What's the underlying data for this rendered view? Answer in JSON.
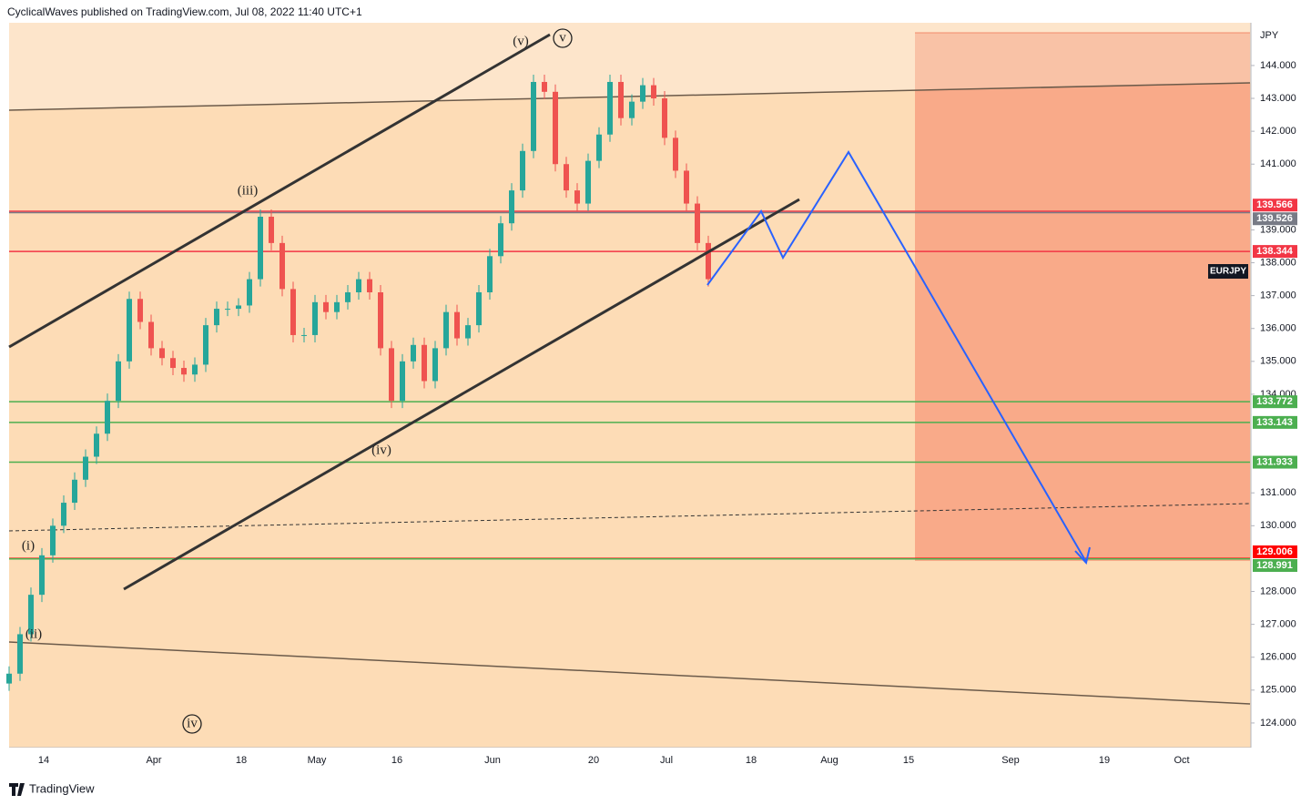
{
  "header": {
    "text": "CyclicalWaves published on TradingView.com, Jul 08, 2022 11:40 UTC+1"
  },
  "footer": {
    "brand": "TradingView"
  },
  "chart_data": {
    "type": "candlestick",
    "symbol": "EURJPY",
    "unit": "JPY",
    "up_color": "#26a69a",
    "down_color": "#ef5350",
    "closes": [
      125.5,
      126.7,
      127.9,
      129.1,
      130.0,
      130.7,
      131.4,
      132.1,
      132.8,
      133.8,
      135.0,
      136.9,
      136.2,
      135.4,
      135.1,
      134.8,
      134.6,
      134.9,
      136.1,
      136.6,
      136.6,
      136.7,
      137.5,
      139.4,
      138.6,
      137.2,
      135.8,
      135.8,
      136.8,
      136.5,
      136.8,
      137.1,
      137.5,
      137.1,
      135.4,
      133.8,
      135.0,
      135.5,
      134.4,
      135.4,
      136.5,
      135.7,
      136.1,
      137.1,
      138.2,
      139.2,
      140.2,
      141.4,
      143.5,
      143.2,
      141.0,
      140.2,
      139.8,
      141.1,
      141.9,
      143.5,
      142.4,
      142.9,
      143.4,
      143.0,
      141.8,
      140.8,
      139.8,
      138.6,
      137.5
    ],
    "ylim": [
      123.25,
      145.3
    ],
    "yticks": [
      {
        "value": 124,
        "label": "124.000"
      },
      {
        "value": 125,
        "label": "125.000"
      },
      {
        "value": 126,
        "label": "126.000"
      },
      {
        "value": 127,
        "label": "127.000"
      },
      {
        "value": 128,
        "label": "128.000"
      },
      {
        "value": 130,
        "label": "130.000"
      },
      {
        "value": 131,
        "label": "131.000"
      },
      {
        "value": 134,
        "label": "134.000"
      },
      {
        "value": 135,
        "label": "135.000"
      },
      {
        "value": 136,
        "label": "136.000"
      },
      {
        "value": 137,
        "label": "137.000"
      },
      {
        "value": 138,
        "label": "138.000"
      },
      {
        "value": 139,
        "label": "139.000"
      },
      {
        "value": 141,
        "label": "141.000"
      },
      {
        "value": 142,
        "label": "142.000"
      },
      {
        "value": 143,
        "label": "143.000"
      },
      {
        "value": 144,
        "label": "144.000"
      }
    ],
    "xticks": [
      "14",
      "Apr",
      "18",
      "May",
      "16",
      "Jun",
      "20",
      "Jul",
      "18",
      "Aug",
      "15",
      "Sep",
      "19",
      "Oct"
    ],
    "levels": [
      {
        "value": 139.566,
        "color": "#f23645"
      },
      {
        "value": 139.526,
        "color": "#787b86"
      },
      {
        "value": 138.344,
        "color": "#f23645"
      },
      {
        "value": 133.772,
        "color": "#4caf50"
      },
      {
        "value": 133.143,
        "color": "#4caf50"
      },
      {
        "value": 131.933,
        "color": "#4caf50"
      },
      {
        "value": 129.006,
        "color": "#ff0000"
      },
      {
        "value": 128.991,
        "color": "#4caf50"
      }
    ],
    "wave_labels": [
      "(v)",
      "v",
      "(iii)",
      "(iv)",
      "(i)",
      "(ii)",
      "iv"
    ]
  }
}
